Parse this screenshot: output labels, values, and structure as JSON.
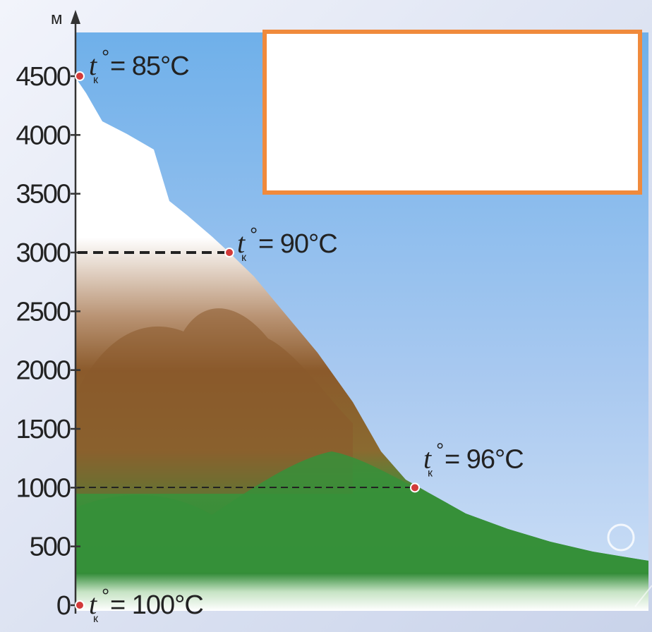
{
  "axis": {
    "unit": "м",
    "ticks": [
      "0",
      "500",
      "1000",
      "1500",
      "2000",
      "2500",
      "3000",
      "3500",
      "4000",
      "4500"
    ],
    "tick_values": [
      0,
      500,
      1000,
      1500,
      2000,
      2500,
      3000,
      3500,
      4000,
      4500
    ]
  },
  "annotations": [
    {
      "id": "ann-85",
      "altitude": 4500,
      "t": "t",
      "sub": "к",
      "deg": "°",
      "value": " = 85°С"
    },
    {
      "id": "ann-90",
      "altitude": 3000,
      "t": "t",
      "sub": "к",
      "deg": "°",
      "value": " = 90°С"
    },
    {
      "id": "ann-96",
      "altitude": 1000,
      "t": "t",
      "sub": "к",
      "deg": "°",
      "value": " = 96°С"
    },
    {
      "id": "ann-100",
      "altitude": 0,
      "t": "t",
      "sub": "к",
      "deg": "°",
      "value": " = 100°С"
    }
  ],
  "colors": {
    "sky_top": "#6fb0ea",
    "sky_bottom": "#cfe0f6",
    "snow": "#ffffff",
    "rock": "#8b5a2b",
    "grass": "#3a8f3c",
    "marker": "#d23a3a",
    "highlight_box_border": "#f08a3c"
  }
}
